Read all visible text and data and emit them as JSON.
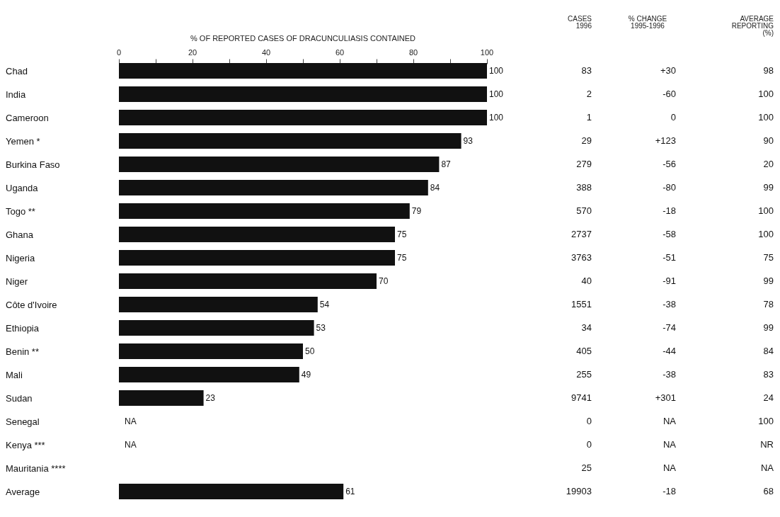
{
  "chart_data": [
    {
      "type": "bar",
      "orientation": "horizontal",
      "xlabel": "% OF REPORTED CASES OF DRACUNCULIASIS CONTAINED",
      "categories": [
        "Chad",
        "India",
        "Cameroon",
        "Yemen *",
        "Burkina Faso",
        "Uganda",
        "Togo **",
        "Ghana",
        "Nigeria",
        "Niger",
        "Côte d'Ivoire",
        "Ethiopia",
        "Benin **",
        "Mali",
        "Sudan",
        "Senegal",
        "Kenya ***",
        "Mauritania ****",
        "Average"
      ],
      "values": [
        100,
        100,
        100,
        93,
        87,
        84,
        79,
        75,
        75,
        70,
        54,
        53,
        50,
        49,
        23,
        null,
        null,
        null,
        61
      ],
      "value_labels": [
        "100",
        "100",
        "100",
        "93",
        "87",
        "84",
        "79",
        "75",
        "75",
        "70",
        "54",
        "53",
        "50",
        "49",
        "23",
        "NA",
        "NA",
        null,
        "61"
      ],
      "color": "#111111",
      "xlim": [
        0,
        100
      ],
      "xticks": [
        0,
        {
          "value": 10,
          "label": null
        },
        20,
        {
          "value": 30,
          "label": null
        },
        40,
        {
          "value": 50,
          "label": null
        },
        60,
        {
          "value": 70,
          "label": null
        },
        80,
        {
          "value": 90,
          "label": null
        },
        100
      ],
      "grid": false
    },
    {
      "type": "other",
      "title": "CASES 1996",
      "annotations": [
        "83",
        "2",
        "1",
        "29",
        "279",
        "388",
        "570",
        "2737",
        "3763",
        "40",
        "1551",
        "34",
        "405",
        "255",
        "9741",
        "0",
        "0",
        "25",
        "19903"
      ]
    },
    {
      "type": "other",
      "title": "% CHANGE 1995-1996",
      "annotations": [
        "+30",
        "-60",
        "0",
        "+123",
        "-56",
        "-80",
        "-18",
        "-58",
        "-51",
        "-91",
        "-38",
        "-74",
        "-44",
        "-38",
        "+301",
        "NA",
        "NA",
        "NA",
        "-18"
      ]
    },
    {
      "type": "other",
      "title": "AVERAGE REPORTING (%)",
      "annotations": [
        "98",
        "100",
        "100",
        "90",
        "20",
        "99",
        "100",
        "100",
        "75",
        "99",
        "78",
        "99",
        "84",
        "83",
        "24",
        "100",
        "NR",
        "NA",
        "68"
      ]
    }
  ]
}
